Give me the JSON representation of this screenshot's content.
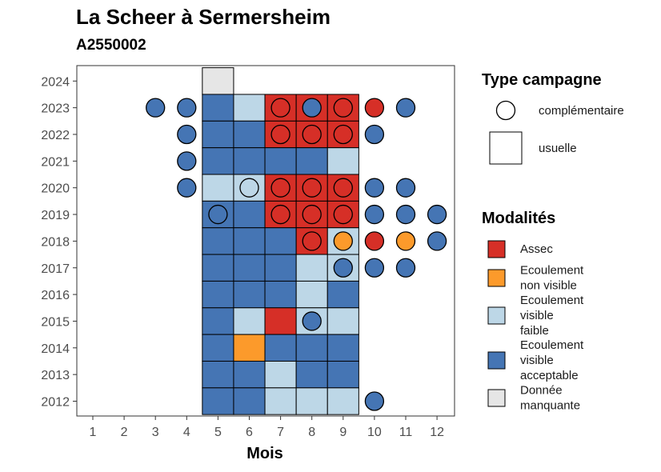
{
  "chart_data": {
    "type": "heatmap",
    "title": "La Scheer à Sermersheim",
    "subtitle": "A2550002",
    "xlabel": "Mois",
    "ylabel": "",
    "x_ticks": [
      "1",
      "2",
      "3",
      "4",
      "5",
      "6",
      "7",
      "8",
      "9",
      "10",
      "11",
      "12"
    ],
    "y_ticks": [
      "2012",
      "2013",
      "2014",
      "2015",
      "2016",
      "2017",
      "2018",
      "2019",
      "2020",
      "2021",
      "2022",
      "2023",
      "2024"
    ],
    "xlim": [
      0.5,
      12.5
    ],
    "ylim": [
      2011.5,
      2024.6
    ],
    "colors": {
      "Assec": "#d62f27",
      "Ecoulement non visible": "#fc9a2b",
      "Ecoulement visible faible": "#bdd7e7",
      "Ecoulement visible acceptable": "#4575b4",
      "Donnée manquante": "#e6e6e6"
    },
    "legend_shape": {
      "title": "Type campagne",
      "items": [
        {
          "shape": "circle",
          "label": "complémentaire"
        },
        {
          "shape": "square",
          "label": "usuelle"
        }
      ]
    },
    "legend_fill": {
      "title": "Modalités",
      "items": [
        {
          "key": "Assec",
          "lines": [
            "Assec"
          ]
        },
        {
          "key": "Ecoulement non visible",
          "lines": [
            "Ecoulement",
            "non visible"
          ]
        },
        {
          "key": "Ecoulement visible faible",
          "lines": [
            "Ecoulement",
            "visible",
            "faible"
          ]
        },
        {
          "key": "Ecoulement visible acceptable",
          "lines": [
            "Ecoulement",
            "visible",
            "acceptable"
          ]
        },
        {
          "key": "Donnée manquante",
          "lines": [
            "Donnée",
            "manquante"
          ]
        }
      ]
    },
    "usuelle": [
      {
        "year": 2024,
        "month": 5,
        "status": "Donnée manquante"
      },
      {
        "year": 2023,
        "month": 5,
        "status": "Ecoulement visible acceptable"
      },
      {
        "year": 2023,
        "month": 6,
        "status": "Ecoulement visible faible"
      },
      {
        "year": 2023,
        "month": 7,
        "status": "Assec"
      },
      {
        "year": 2023,
        "month": 8,
        "status": "Assec"
      },
      {
        "year": 2023,
        "month": 9,
        "status": "Assec"
      },
      {
        "year": 2022,
        "month": 5,
        "status": "Ecoulement visible acceptable"
      },
      {
        "year": 2022,
        "month": 6,
        "status": "Ecoulement visible acceptable"
      },
      {
        "year": 2022,
        "month": 7,
        "status": "Assec"
      },
      {
        "year": 2022,
        "month": 8,
        "status": "Assec"
      },
      {
        "year": 2022,
        "month": 9,
        "status": "Assec"
      },
      {
        "year": 2021,
        "month": 5,
        "status": "Ecoulement visible acceptable"
      },
      {
        "year": 2021,
        "month": 6,
        "status": "Ecoulement visible acceptable"
      },
      {
        "year": 2021,
        "month": 7,
        "status": "Ecoulement visible acceptable"
      },
      {
        "year": 2021,
        "month": 8,
        "status": "Ecoulement visible acceptable"
      },
      {
        "year": 2021,
        "month": 9,
        "status": "Ecoulement visible faible"
      },
      {
        "year": 2020,
        "month": 5,
        "status": "Ecoulement visible faible"
      },
      {
        "year": 2020,
        "month": 6,
        "status": "Ecoulement visible faible"
      },
      {
        "year": 2020,
        "month": 7,
        "status": "Assec"
      },
      {
        "year": 2020,
        "month": 8,
        "status": "Assec"
      },
      {
        "year": 2020,
        "month": 9,
        "status": "Assec"
      },
      {
        "year": 2019,
        "month": 5,
        "status": "Ecoulement visible acceptable"
      },
      {
        "year": 2019,
        "month": 6,
        "status": "Ecoulement visible acceptable"
      },
      {
        "year": 2019,
        "month": 7,
        "status": "Assec"
      },
      {
        "year": 2019,
        "month": 8,
        "status": "Assec"
      },
      {
        "year": 2019,
        "month": 9,
        "status": "Assec"
      },
      {
        "year": 2018,
        "month": 5,
        "status": "Ecoulement visible acceptable"
      },
      {
        "year": 2018,
        "month": 6,
        "status": "Ecoulement visible acceptable"
      },
      {
        "year": 2018,
        "month": 7,
        "status": "Ecoulement visible acceptable"
      },
      {
        "year": 2018,
        "month": 8,
        "status": "Assec"
      },
      {
        "year": 2018,
        "month": 9,
        "status": "Ecoulement visible faible"
      },
      {
        "year": 2017,
        "month": 5,
        "status": "Ecoulement visible acceptable"
      },
      {
        "year": 2017,
        "month": 6,
        "status": "Ecoulement visible acceptable"
      },
      {
        "year": 2017,
        "month": 7,
        "status": "Ecoulement visible acceptable"
      },
      {
        "year": 2017,
        "month": 8,
        "status": "Ecoulement visible faible"
      },
      {
        "year": 2017,
        "month": 9,
        "status": "Ecoulement visible faible"
      },
      {
        "year": 2016,
        "month": 5,
        "status": "Ecoulement visible acceptable"
      },
      {
        "year": 2016,
        "month": 6,
        "status": "Ecoulement visible acceptable"
      },
      {
        "year": 2016,
        "month": 7,
        "status": "Ecoulement visible acceptable"
      },
      {
        "year": 2016,
        "month": 8,
        "status": "Ecoulement visible faible"
      },
      {
        "year": 2016,
        "month": 9,
        "status": "Ecoulement visible acceptable"
      },
      {
        "year": 2015,
        "month": 5,
        "status": "Ecoulement visible acceptable"
      },
      {
        "year": 2015,
        "month": 6,
        "status": "Ecoulement visible faible"
      },
      {
        "year": 2015,
        "month": 7,
        "status": "Assec"
      },
      {
        "year": 2015,
        "month": 8,
        "status": "Ecoulement visible faible"
      },
      {
        "year": 2015,
        "month": 9,
        "status": "Ecoulement visible faible"
      },
      {
        "year": 2014,
        "month": 5,
        "status": "Ecoulement visible acceptable"
      },
      {
        "year": 2014,
        "month": 6,
        "status": "Ecoulement non visible"
      },
      {
        "year": 2014,
        "month": 7,
        "status": "Ecoulement visible acceptable"
      },
      {
        "year": 2014,
        "month": 8,
        "status": "Ecoulement visible acceptable"
      },
      {
        "year": 2014,
        "month": 9,
        "status": "Ecoulement visible acceptable"
      },
      {
        "year": 2013,
        "month": 5,
        "status": "Ecoulement visible acceptable"
      },
      {
        "year": 2013,
        "month": 6,
        "status": "Ecoulement visible acceptable"
      },
      {
        "year": 2013,
        "month": 7,
        "status": "Ecoulement visible faible"
      },
      {
        "year": 2013,
        "month": 8,
        "status": "Ecoulement visible acceptable"
      },
      {
        "year": 2013,
        "month": 9,
        "status": "Ecoulement visible acceptable"
      },
      {
        "year": 2012,
        "month": 5,
        "status": "Ecoulement visible acceptable"
      },
      {
        "year": 2012,
        "month": 6,
        "status": "Ecoulement visible acceptable"
      },
      {
        "year": 2012,
        "month": 7,
        "status": "Ecoulement visible faible"
      },
      {
        "year": 2012,
        "month": 8,
        "status": "Ecoulement visible faible"
      },
      {
        "year": 2012,
        "month": 9,
        "status": "Ecoulement visible faible"
      }
    ],
    "complementaire": [
      {
        "year": 2023,
        "month": 3,
        "status": "Ecoulement visible acceptable"
      },
      {
        "year": 2023,
        "month": 4,
        "status": "Ecoulement visible acceptable"
      },
      {
        "year": 2023,
        "month": 7,
        "status": "Assec"
      },
      {
        "year": 2023,
        "month": 8,
        "status": "Ecoulement visible acceptable"
      },
      {
        "year": 2023,
        "month": 9,
        "status": "Assec"
      },
      {
        "year": 2023,
        "month": 10,
        "status": "Assec"
      },
      {
        "year": 2023,
        "month": 11,
        "status": "Ecoulement visible acceptable"
      },
      {
        "year": 2022,
        "month": 4,
        "status": "Ecoulement visible acceptable"
      },
      {
        "year": 2022,
        "month": 7,
        "status": "Assec"
      },
      {
        "year": 2022,
        "month": 8,
        "status": "Assec"
      },
      {
        "year": 2022,
        "month": 9,
        "status": "Assec"
      },
      {
        "year": 2022,
        "month": 10,
        "status": "Ecoulement visible acceptable"
      },
      {
        "year": 2021,
        "month": 4,
        "status": "Ecoulement visible acceptable"
      },
      {
        "year": 2020,
        "month": 4,
        "status": "Ecoulement visible acceptable"
      },
      {
        "year": 2020,
        "month": 6,
        "status": "Ecoulement visible faible"
      },
      {
        "year": 2020,
        "month": 7,
        "status": "Assec"
      },
      {
        "year": 2020,
        "month": 8,
        "status": "Assec"
      },
      {
        "year": 2020,
        "month": 9,
        "status": "Assec"
      },
      {
        "year": 2020,
        "month": 10,
        "status": "Ecoulement visible acceptable"
      },
      {
        "year": 2020,
        "month": 11,
        "status": "Ecoulement visible acceptable"
      },
      {
        "year": 2019,
        "month": 5,
        "status": "Ecoulement visible acceptable"
      },
      {
        "year": 2019,
        "month": 7,
        "status": "Assec"
      },
      {
        "year": 2019,
        "month": 8,
        "status": "Assec"
      },
      {
        "year": 2019,
        "month": 9,
        "status": "Assec"
      },
      {
        "year": 2019,
        "month": 10,
        "status": "Ecoulement visible acceptable"
      },
      {
        "year": 2019,
        "month": 11,
        "status": "Ecoulement visible acceptable"
      },
      {
        "year": 2019,
        "month": 12,
        "status": "Ecoulement visible acceptable"
      },
      {
        "year": 2018,
        "month": 8,
        "status": "Assec"
      },
      {
        "year": 2018,
        "month": 9,
        "status": "Ecoulement non visible"
      },
      {
        "year": 2018,
        "month": 10,
        "status": "Assec"
      },
      {
        "year": 2018,
        "month": 11,
        "status": "Ecoulement non visible"
      },
      {
        "year": 2018,
        "month": 12,
        "status": "Ecoulement visible acceptable"
      },
      {
        "year": 2017,
        "month": 9,
        "status": "Ecoulement visible acceptable"
      },
      {
        "year": 2017,
        "month": 10,
        "status": "Ecoulement visible acceptable"
      },
      {
        "year": 2017,
        "month": 11,
        "status": "Ecoulement visible acceptable"
      },
      {
        "year": 2015,
        "month": 8,
        "status": "Ecoulement visible acceptable"
      },
      {
        "year": 2012,
        "month": 10,
        "status": "Ecoulement visible acceptable"
      }
    ]
  }
}
